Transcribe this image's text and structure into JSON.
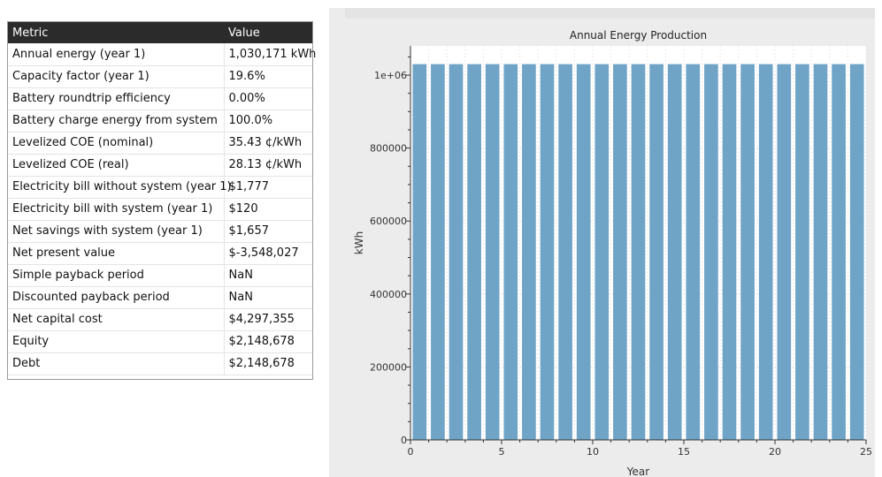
{
  "table": {
    "headers": [
      "Metric",
      "Value"
    ],
    "rows": [
      {
        "metric": "Annual energy (year 1)",
        "value": "1,030,171 kWh"
      },
      {
        "metric": "Capacity factor (year 1)",
        "value": "19.6%"
      },
      {
        "metric": "Battery roundtrip efficiency",
        "value": "0.00%"
      },
      {
        "metric": "Battery charge energy from system",
        "value": "100.0%"
      },
      {
        "metric": "Levelized COE (nominal)",
        "value": "35.43 ¢/kWh"
      },
      {
        "metric": "Levelized COE (real)",
        "value": "28.13 ¢/kWh"
      },
      {
        "metric": "Electricity bill without system (year 1)",
        "value": "$1,777"
      },
      {
        "metric": "Electricity bill with system (year 1)",
        "value": "$120"
      },
      {
        "metric": "Net savings with system (year 1)",
        "value": "$1,657"
      },
      {
        "metric": "Net present value",
        "value": "$-3,548,027"
      },
      {
        "metric": "Simple payback period",
        "value": "NaN"
      },
      {
        "metric": "Discounted payback period",
        "value": "NaN"
      },
      {
        "metric": "Net capital cost",
        "value": "$4,297,355"
      },
      {
        "metric": "Equity",
        "value": "$2,148,678"
      },
      {
        "metric": "Debt",
        "value": "$2,148,678"
      }
    ]
  },
  "chart_data": {
    "type": "bar",
    "title": "Annual Energy Production",
    "xlabel": "Year",
    "ylabel": "kWh",
    "x": [
      1,
      2,
      3,
      4,
      5,
      6,
      7,
      8,
      9,
      10,
      11,
      12,
      13,
      14,
      15,
      16,
      17,
      18,
      19,
      20,
      21,
      22,
      23,
      24,
      25
    ],
    "values": [
      1030171,
      1030171,
      1030171,
      1030171,
      1030171,
      1030171,
      1030171,
      1030171,
      1030171,
      1030171,
      1030171,
      1030171,
      1030171,
      1030171,
      1030171,
      1030171,
      1030171,
      1030171,
      1030171,
      1030171,
      1030171,
      1030171,
      1030171,
      1030171,
      1030171
    ],
    "xlim": [
      0,
      25
    ],
    "ylim": [
      0,
      1080000
    ],
    "xticks": [
      0,
      5,
      10,
      15,
      20,
      25
    ],
    "xtick_labels": [
      "0",
      "5",
      "10",
      "15",
      "20",
      "25"
    ],
    "yticks": [
      0,
      200000,
      400000,
      600000,
      800000,
      1000000
    ],
    "ytick_labels": [
      "0",
      "200000",
      "400000",
      "600000",
      "800000",
      "1e+06"
    ],
    "grid": true,
    "colors": {
      "bar": "#6fa4c7",
      "grid": "#d8d8d8",
      "plot_bg": "#ffffff",
      "panel_bg": "#ececec"
    }
  }
}
